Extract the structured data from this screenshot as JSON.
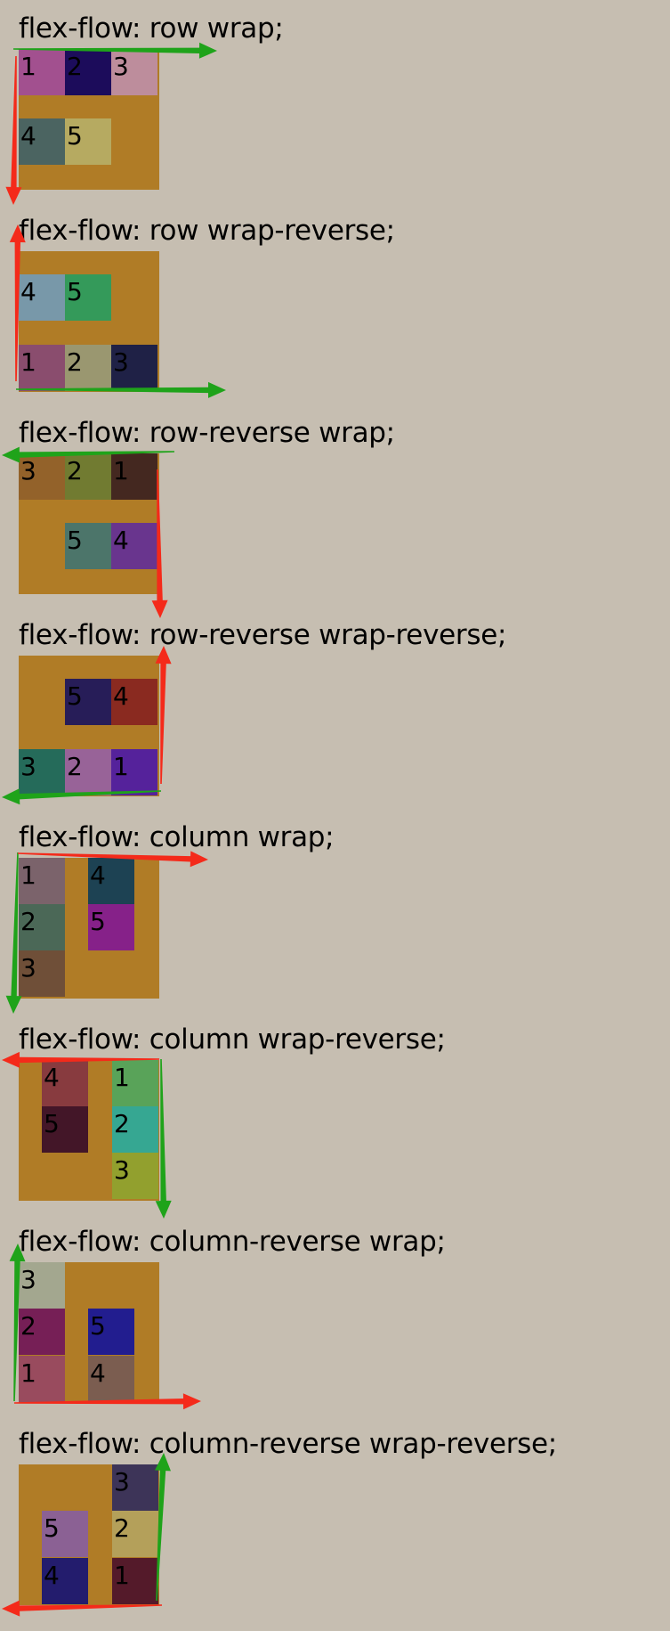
{
  "colors": {
    "background": "#c6beb1",
    "container": "#b07c26",
    "main_axis_arrow": "#1fa31a",
    "cross_axis_arrow": "#f42a1a"
  },
  "examples": [
    {
      "title": "flex-flow: row wrap;",
      "items": [
        {
          "label": "1",
          "color": "#a2508f"
        },
        {
          "label": "2",
          "color": "#1c0c5b"
        },
        {
          "label": "3",
          "color": "#bd8d9c"
        },
        {
          "label": "4",
          "color": "#4b6461"
        },
        {
          "label": "5",
          "color": "#b6aa61"
        }
      ]
    },
    {
      "title": "flex-flow: row wrap-reverse;",
      "items": [
        {
          "label": "1",
          "color": "#8a4d6e"
        },
        {
          "label": "2",
          "color": "#9a9770"
        },
        {
          "label": "3",
          "color": "#1f2146"
        },
        {
          "label": "4",
          "color": "#7898a9"
        },
        {
          "label": "5",
          "color": "#349a5a"
        }
      ]
    },
    {
      "title": "flex-flow: row-reverse wrap;",
      "items": [
        {
          "label": "1",
          "color": "#442820"
        },
        {
          "label": "2",
          "color": "#717b31"
        },
        {
          "label": "3",
          "color": "#93622a"
        },
        {
          "label": "4",
          "color": "#69358e"
        },
        {
          "label": "5",
          "color": "#4c756a"
        }
      ]
    },
    {
      "title": "flex-flow: row-reverse wrap-reverse;",
      "items": [
        {
          "label": "1",
          "color": "#55229b"
        },
        {
          "label": "2",
          "color": "#986398"
        },
        {
          "label": "3",
          "color": "#256b5a"
        },
        {
          "label": "4",
          "color": "#8a2a20"
        },
        {
          "label": "5",
          "color": "#271d58"
        }
      ]
    },
    {
      "title": "flex-flow: column wrap;",
      "items": [
        {
          "label": "1",
          "color": "#7b636b"
        },
        {
          "label": "2",
          "color": "#4b6857"
        },
        {
          "label": "3",
          "color": "#6f4f38"
        },
        {
          "label": "4",
          "color": "#1d4253"
        },
        {
          "label": "5",
          "color": "#862189"
        }
      ]
    },
    {
      "title": "flex-flow: column wrap-reverse;",
      "items": [
        {
          "label": "1",
          "color": "#59a359"
        },
        {
          "label": "2",
          "color": "#36a792"
        },
        {
          "label": "3",
          "color": "#92a02e"
        },
        {
          "label": "4",
          "color": "#883b3f"
        },
        {
          "label": "5",
          "color": "#431628"
        }
      ]
    },
    {
      "title": "flex-flow: column-reverse wrap;",
      "items": [
        {
          "label": "1",
          "color": "#994b5e"
        },
        {
          "label": "2",
          "color": "#761f56"
        },
        {
          "label": "3",
          "color": "#a3a78f"
        },
        {
          "label": "4",
          "color": "#7b5d50"
        },
        {
          "label": "5",
          "color": "#221d8f"
        }
      ]
    },
    {
      "title": "flex-flow: column-reverse wrap-reverse;",
      "items": [
        {
          "label": "1",
          "color": "#541a2a"
        },
        {
          "label": "2",
          "color": "#b4a05a"
        },
        {
          "label": "3",
          "color": "#3d3458"
        },
        {
          "label": "4",
          "color": "#231c6d"
        },
        {
          "label": "5",
          "color": "#8b6194"
        }
      ]
    }
  ]
}
